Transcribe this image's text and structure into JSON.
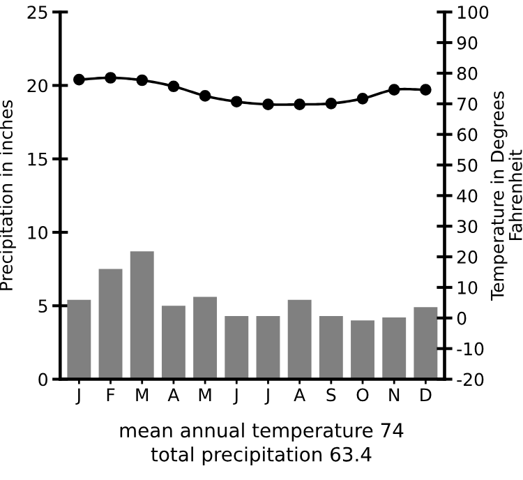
{
  "chart_data": {
    "type": "bar",
    "categories": [
      "J",
      "F",
      "M",
      "A",
      "M",
      "J",
      "J",
      "A",
      "S",
      "O",
      "N",
      "D"
    ],
    "series": [
      {
        "color": "#808080",
        "values": [
          5.4,
          7.5,
          8.7,
          5.0,
          5.6,
          4.3,
          4.3,
          5.4,
          4.3,
          4.0,
          4.2,
          4.9
        ]
      },
      {
        "type": "line",
        "axis": "y2",
        "color": "#000000",
        "marker": "circle",
        "line_style": "solid",
        "values": [
          77.9,
          78.5,
          77.7,
          75.7,
          72.6,
          70.7,
          69.8,
          69.8,
          70.1,
          71.7,
          74.6,
          74.6
        ]
      }
    ],
    "ylabel": "Precipitation in inches",
    "y2label": "Temperature in Degrees Fahrenheit",
    "ylim": [
      0,
      25
    ],
    "yticks": [
      0,
      5,
      10,
      15,
      20,
      25
    ],
    "y2lim": [
      -20,
      100
    ],
    "y2ticks": [
      -20,
      -10,
      0,
      10,
      20,
      30,
      40,
      50,
      60,
      70,
      80,
      90,
      100
    ],
    "grid": false,
    "legend": false,
    "annotations": [
      "mean annual temperature 74",
      "total precipitation 63.4"
    ]
  }
}
